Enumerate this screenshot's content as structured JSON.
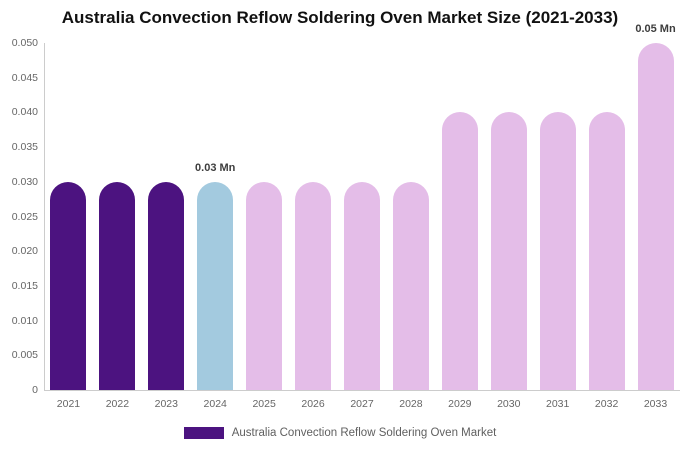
{
  "page": {
    "background_color": "#ffffff"
  },
  "chart_data": {
    "type": "bar",
    "title": "Australia Convection Reflow Soldering Oven Market Size (2021-2033)",
    "categories": [
      "2021",
      "2022",
      "2023",
      "2024",
      "2025",
      "2026",
      "2027",
      "2028",
      "2029",
      "2030",
      "2031",
      "2032",
      "2033"
    ],
    "values": [
      0.03,
      0.03,
      0.03,
      0.03,
      0.03,
      0.03,
      0.03,
      0.03,
      0.04,
      0.04,
      0.04,
      0.04,
      0.05
    ],
    "unit": "Mn",
    "bar_colors": [
      "#4C1380",
      "#4C1380",
      "#4C1380",
      "#A3CADF",
      "#E4BDE8",
      "#E4BDE8",
      "#E4BDE8",
      "#E4BDE8",
      "#E4BDE8",
      "#E4BDE8",
      "#E4BDE8",
      "#E4BDE8",
      "#E4BDE8"
    ],
    "data_labels": {
      "2024": "0.03 Mn",
      "2033": "0.05 Mn"
    },
    "xlabel": "",
    "ylabel": "",
    "ylim": [
      0,
      0.05
    ],
    "yticks": [
      0,
      0.005,
      0.01,
      0.015,
      0.02,
      0.025,
      0.03,
      0.035,
      0.04,
      0.045,
      0.05
    ],
    "ytick_labels": [
      "0",
      "0.005",
      "0.010",
      "0.015",
      "0.020",
      "0.025",
      "0.030",
      "0.035",
      "0.040",
      "0.045",
      "0.050"
    ],
    "grid": false,
    "legend_position": "bottom",
    "legend": [
      {
        "label": "Australia Convection Reflow Soldering Oven Market",
        "color": "#4C1380"
      }
    ]
  },
  "colors": {
    "dark_purple": "#4C1380",
    "light_blue": "#A3CADF",
    "light_pink": "#E4BDE8",
    "axis_line": "#cccccc",
    "tick_text": "#666666",
    "title_text": "#111111",
    "data_label_text": "#3d3d3d",
    "legend_text": "#606060"
  }
}
